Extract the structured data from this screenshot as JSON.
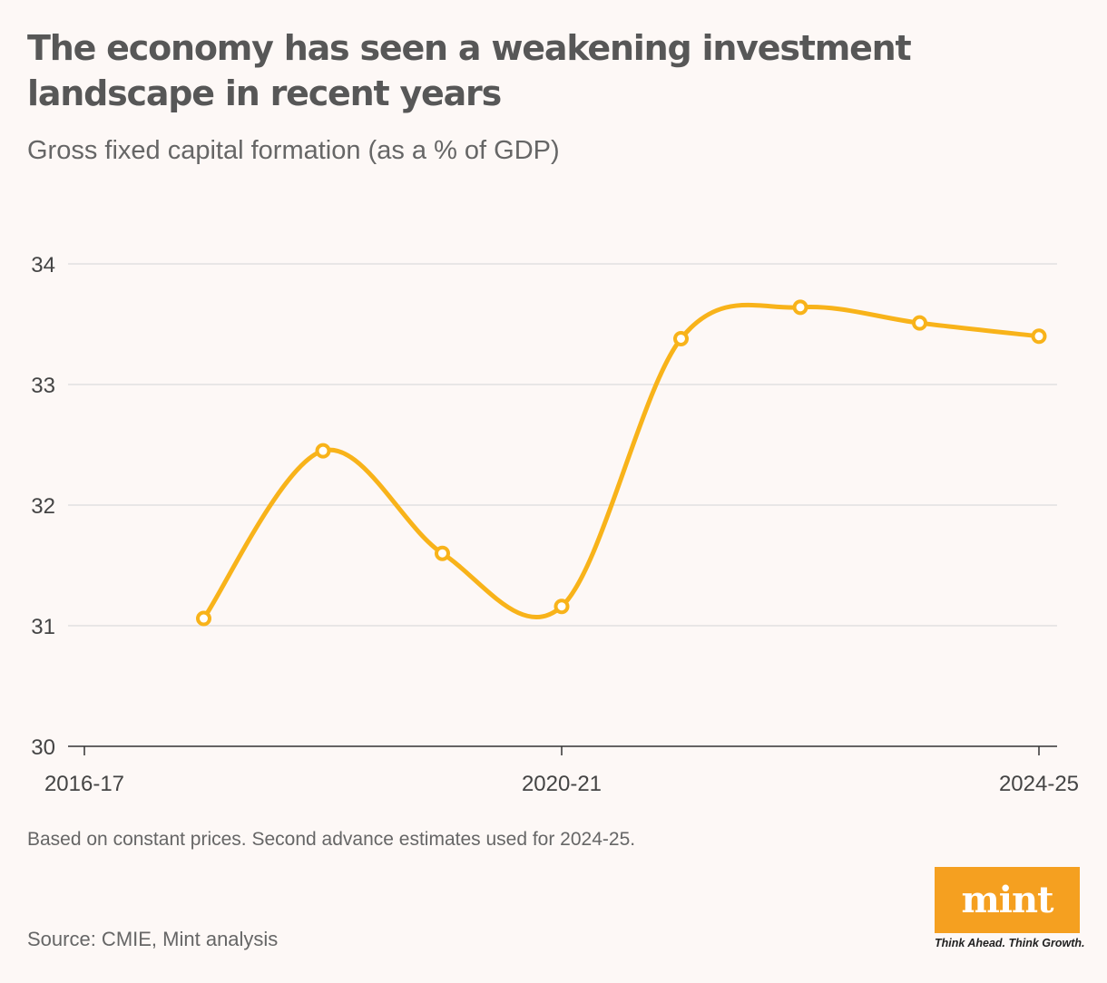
{
  "header": {
    "title": "The economy has seen a weakening investment landscape in recent years",
    "subtitle": "Gross fixed capital formation (as a % of GDP)"
  },
  "chart_data": {
    "type": "line",
    "title": "The economy has seen a weakening investment landscape in recent years",
    "subtitle": "Gross fixed capital formation (as a % of GDP)",
    "xlabel": "",
    "ylabel": "",
    "x": [
      "2016-17",
      "2017-18",
      "2018-19",
      "2019-20",
      "2020-21",
      "2021-22",
      "2022-23",
      "2023-24",
      "2024-25"
    ],
    "x_tick_labels": [
      "2016-17",
      "2020-21",
      "2024-25"
    ],
    "y_ticks": [
      30,
      31,
      32,
      33,
      34
    ],
    "ylim": [
      30,
      34
    ],
    "grid": "horizontal",
    "legend": "none",
    "series": [
      {
        "values": [
          null,
          31.06,
          32.45,
          31.6,
          31.16,
          33.38,
          33.64,
          33.51,
          33.4
        ],
        "color": "#f8b31a",
        "marker": "open-circle"
      }
    ]
  },
  "footer": {
    "note": "Based on constant prices. Second advance estimates used for 2024-25.",
    "source": "Source: CMIE, Mint analysis"
  },
  "logo": {
    "wordmark": "mint",
    "tagline": "Think Ahead. Think Growth.",
    "color": "#f5a020"
  }
}
